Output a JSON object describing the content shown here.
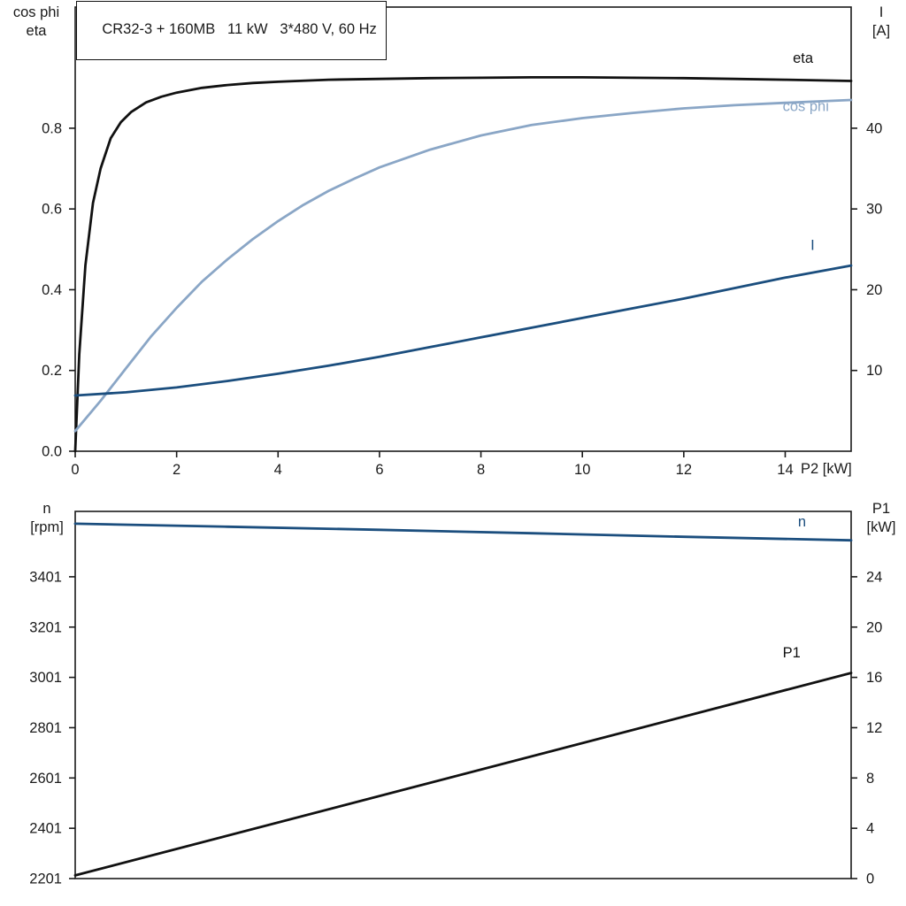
{
  "title": "CR32-3 + 160MB   11 kW   3*480 V, 60 Hz",
  "colors": {
    "frame": "#1a1a1a",
    "black": "#111111",
    "light_blue": "#8aa6c6",
    "dark_blue": "#1b4e7e",
    "text": "#1a1a1a",
    "background": "#ffffff"
  },
  "chart_data": [
    {
      "type": "line",
      "panel": "top",
      "left_axis_label": [
        "cos phi",
        "eta"
      ],
      "right_axis_label": [
        "I",
        "[A]"
      ],
      "x_axis_label": "P2 [kW]",
      "xlim": [
        0,
        15.3
      ],
      "left_ylim": [
        0,
        1.1
      ],
      "right_ylim": [
        0,
        55
      ],
      "x_ticks": [
        0,
        2,
        4,
        6,
        8,
        10,
        12,
        14
      ],
      "left_ticks": [
        0,
        0.2,
        0.4,
        0.6,
        0.8
      ],
      "left_tick_labels": [
        "0.0",
        "0.2",
        "0.4",
        "0.6",
        "0.8"
      ],
      "right_ticks": [
        10,
        20,
        30,
        40
      ],
      "grid": false,
      "legend": "curve-end-labels",
      "series": [
        {
          "name": "eta",
          "label": "eta",
          "color": "black",
          "axis": "left",
          "label_pos": [
            14.15,
            0.962
          ],
          "x": [
            0,
            0.08,
            0.2,
            0.35,
            0.5,
            0.7,
            0.9,
            1.1,
            1.4,
            1.7,
            2,
            2.5,
            3,
            3.5,
            4,
            5,
            6,
            7,
            8,
            9,
            10,
            11,
            12,
            13,
            14,
            15.3
          ],
          "y": [
            0,
            0.24,
            0.46,
            0.615,
            0.7,
            0.775,
            0.815,
            0.84,
            0.864,
            0.878,
            0.888,
            0.9,
            0.907,
            0.912,
            0.915,
            0.92,
            0.922,
            0.924,
            0.925,
            0.926,
            0.926,
            0.925,
            0.924,
            0.922,
            0.92,
            0.917
          ]
        },
        {
          "name": "cos phi",
          "label": "cos phi",
          "color": "light_blue",
          "axis": "left",
          "label_pos": [
            13.95,
            0.842
          ],
          "x": [
            0,
            0.5,
            1,
            1.5,
            2,
            2.5,
            3,
            3.5,
            4,
            4.5,
            5,
            5.5,
            6,
            7,
            8,
            9,
            10,
            11,
            12,
            13,
            14,
            15.3
          ],
          "y": [
            0.05,
            0.125,
            0.205,
            0.285,
            0.355,
            0.42,
            0.475,
            0.525,
            0.57,
            0.61,
            0.645,
            0.675,
            0.703,
            0.747,
            0.782,
            0.808,
            0.825,
            0.838,
            0.849,
            0.857,
            0.863,
            0.87
          ]
        },
        {
          "name": "I",
          "label": "I",
          "color": "dark_blue",
          "axis": "right",
          "label_pos": [
            14.5,
            24.9
          ],
          "x": [
            0,
            1,
            2,
            3,
            4,
            5,
            6,
            7,
            8,
            9,
            10,
            11,
            12,
            13,
            14,
            15.3
          ],
          "y": [
            6.9,
            7.3,
            7.9,
            8.7,
            9.6,
            10.6,
            11.7,
            12.9,
            14.1,
            15.3,
            16.5,
            17.7,
            18.9,
            20.2,
            21.5,
            23.0
          ]
        }
      ]
    },
    {
      "type": "line",
      "panel": "bottom",
      "left_axis_label": [
        "n",
        "[rpm]"
      ],
      "right_axis_label": [
        "P1",
        "[kW]"
      ],
      "x_axis_label": "",
      "xlim": [
        0,
        15.3
      ],
      "left_ylim": [
        2201,
        3661
      ],
      "right_ylim": [
        0,
        29.2
      ],
      "x_ticks": [],
      "left_ticks": [
        2201,
        2401,
        2601,
        2801,
        3001,
        3201,
        3401
      ],
      "left_tick_labels": [
        "2201",
        "2401",
        "2601",
        "2801",
        "3001",
        "3201",
        "3401"
      ],
      "right_ticks": [
        0,
        4,
        8,
        12,
        16,
        20,
        24
      ],
      "grid": false,
      "legend": "curve-end-labels",
      "series": [
        {
          "name": "n",
          "label": "n",
          "color": "dark_blue",
          "axis": "left",
          "label_pos": [
            14.25,
            3602
          ],
          "x": [
            0,
            3,
            6,
            9,
            12,
            15.3
          ],
          "y": [
            3612,
            3600,
            3588,
            3574,
            3560,
            3546
          ]
        },
        {
          "name": "P1",
          "label": "P1",
          "color": "black",
          "axis": "right",
          "label_pos": [
            13.95,
            17.6
          ],
          "x": [
            0,
            15.3
          ],
          "y": [
            0.25,
            16.35
          ]
        }
      ]
    }
  ]
}
